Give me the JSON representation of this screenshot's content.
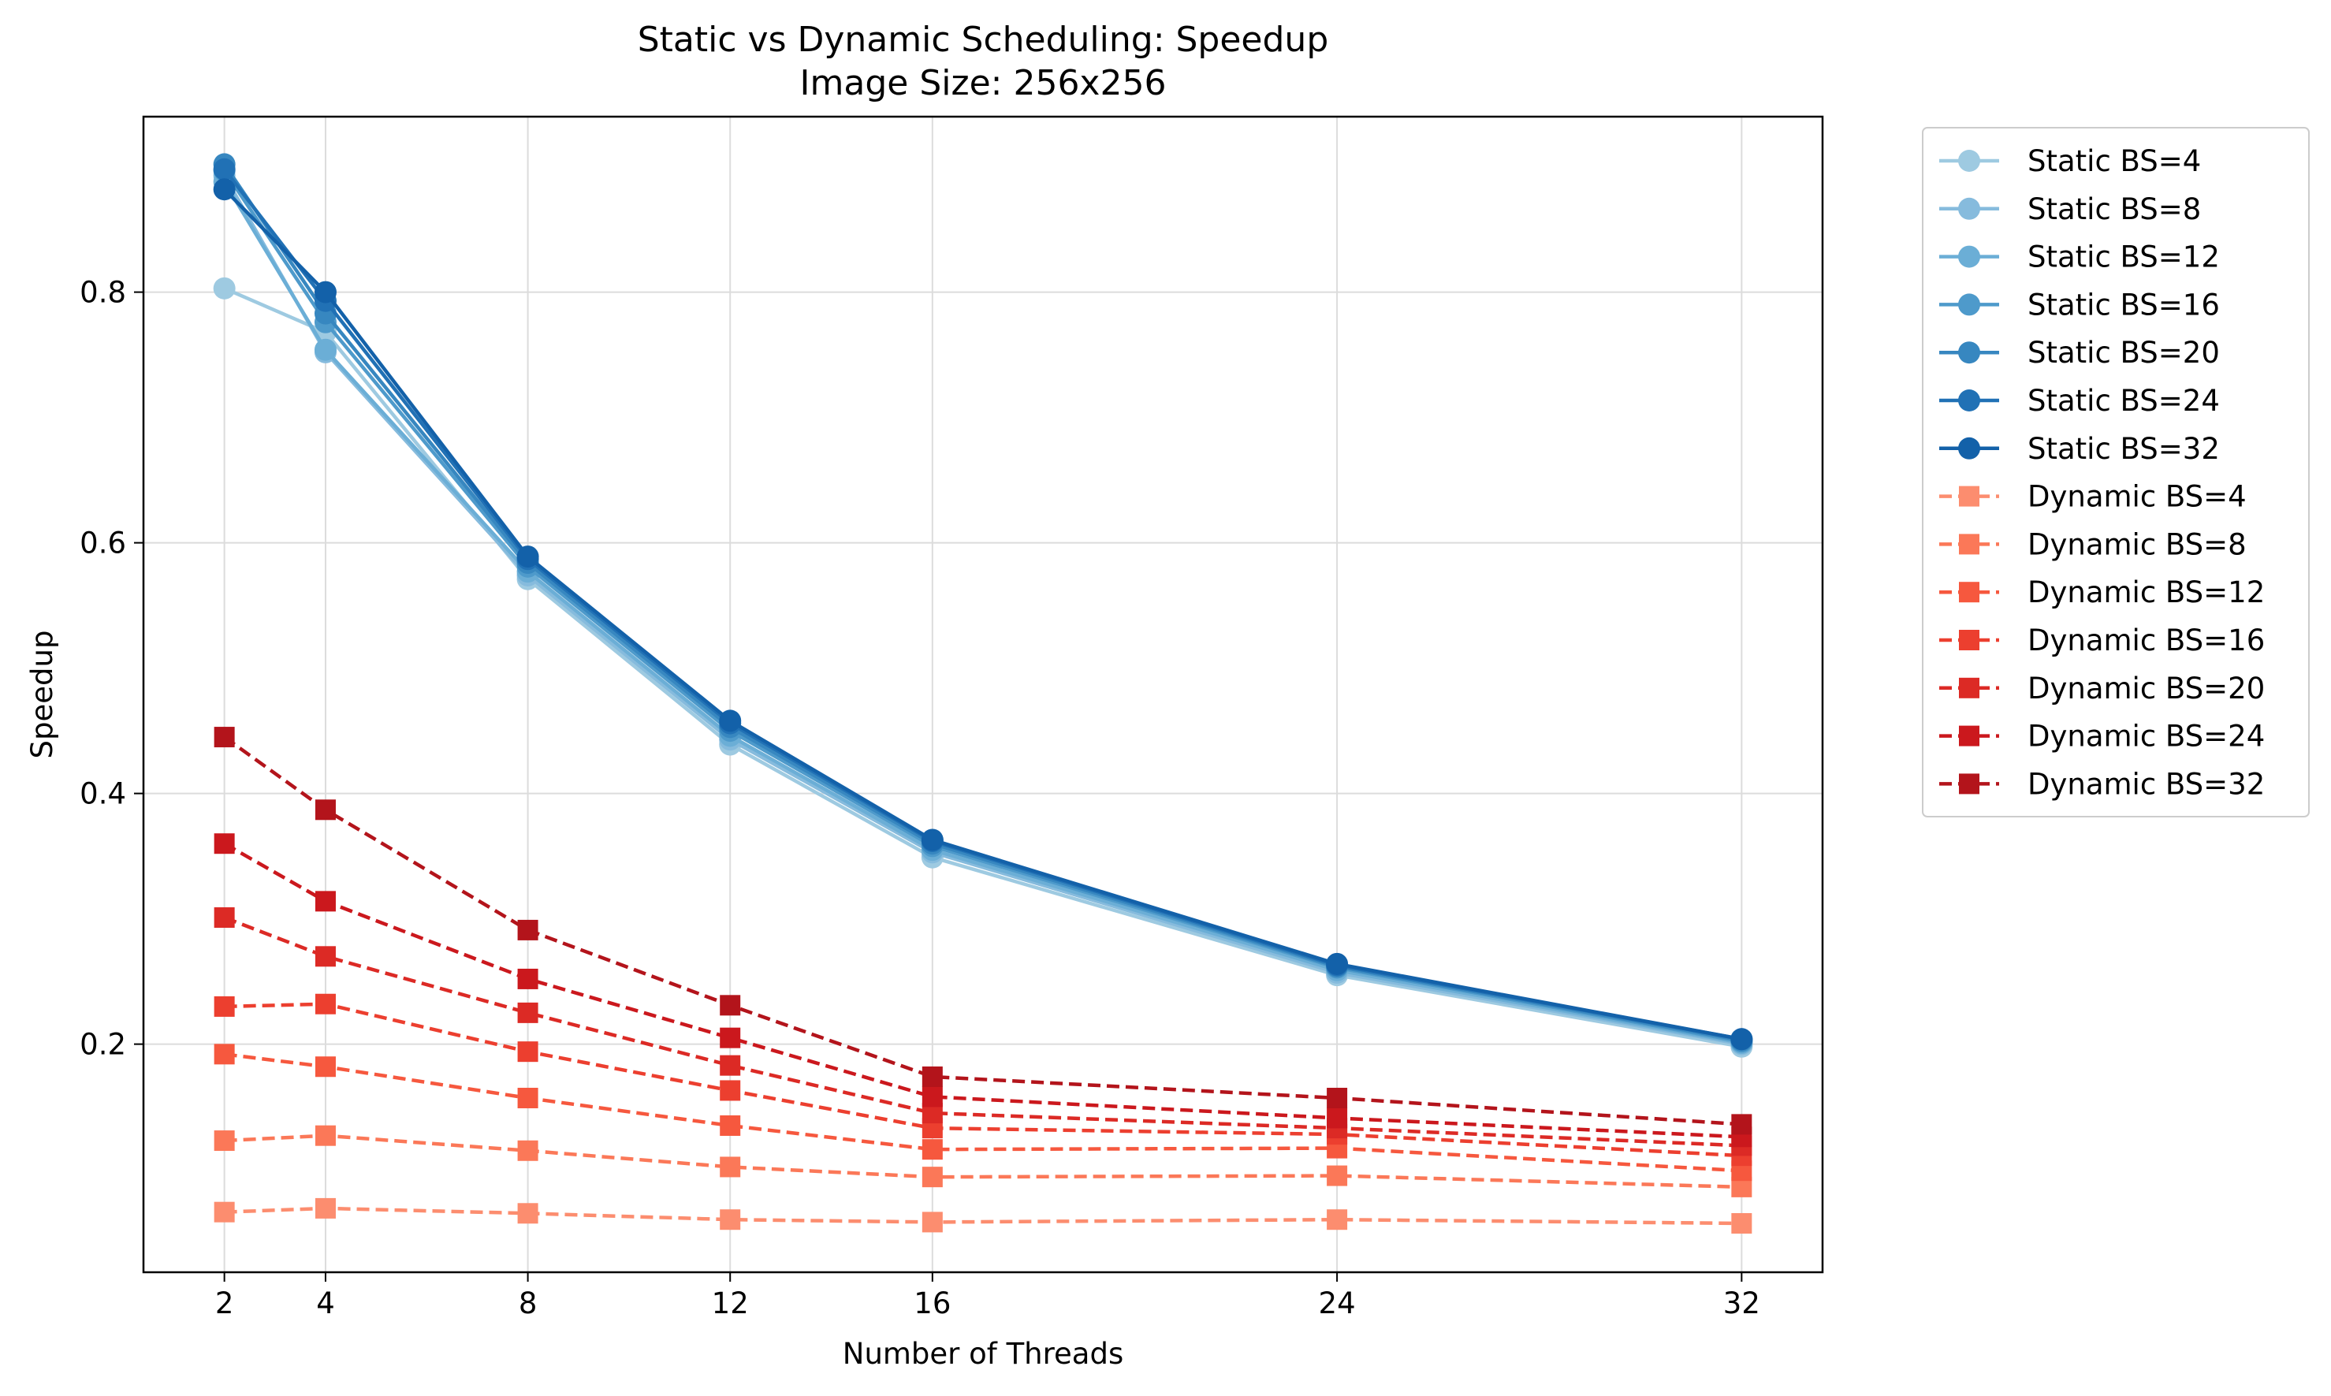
{
  "chart_data": {
    "type": "line",
    "title": "Static vs Dynamic Scheduling: Speedup",
    "subtitle": "Image Size: 256x256",
    "xlabel": "Number of Threads",
    "ylabel": "Speedup",
    "x": [
      2,
      4,
      8,
      12,
      16,
      24,
      32
    ],
    "xlim": [
      0.4,
      33.6
    ],
    "ylim": [
      0.018,
      0.94
    ],
    "xticks": [
      "2",
      "4",
      "8",
      "12",
      "16",
      "24",
      "32"
    ],
    "yticks": [
      {
        "value": 0.2,
        "label": "0.2"
      },
      {
        "value": 0.4,
        "label": "0.4"
      },
      {
        "value": 0.6,
        "label": "0.6"
      },
      {
        "value": 0.8,
        "label": "0.8"
      }
    ],
    "grid": true,
    "legend_position": "outside-right",
    "series": [
      {
        "name": "Static BS=4",
        "group": "static",
        "color": "#9ecae1",
        "values": [
          0.803,
          0.768,
          0.571,
          0.439,
          0.349,
          0.255,
          0.198
        ]
      },
      {
        "name": "Static BS=8",
        "group": "static",
        "color": "#86bbdd",
        "values": [
          0.893,
          0.752,
          0.574,
          0.443,
          0.353,
          0.257,
          0.2
        ]
      },
      {
        "name": "Static BS=12",
        "group": "static",
        "color": "#6baed6",
        "values": [
          0.888,
          0.754,
          0.577,
          0.446,
          0.355,
          0.259,
          0.201
        ]
      },
      {
        "name": "Static BS=16",
        "group": "static",
        "color": "#4e9acb",
        "values": [
          0.897,
          0.776,
          0.581,
          0.45,
          0.358,
          0.261,
          0.202
        ]
      },
      {
        "name": "Static BS=20",
        "group": "static",
        "color": "#3787c0",
        "values": [
          0.902,
          0.783,
          0.584,
          0.453,
          0.36,
          0.262,
          0.203
        ]
      },
      {
        "name": "Static BS=24",
        "group": "static",
        "color": "#2171b5",
        "values": [
          0.898,
          0.793,
          0.587,
          0.456,
          0.362,
          0.263,
          0.204
        ]
      },
      {
        "name": "Static BS=32",
        "group": "static",
        "color": "#1361a9",
        "values": [
          0.882,
          0.8,
          0.589,
          0.458,
          0.363,
          0.264,
          0.204
        ]
      },
      {
        "name": "Dynamic BS=4",
        "group": "dynamic",
        "color": "#fc8d6f",
        "values": [
          0.066,
          0.069,
          0.065,
          0.06,
          0.058,
          0.06,
          0.057
        ]
      },
      {
        "name": "Dynamic BS=8",
        "group": "dynamic",
        "color": "#fb7858",
        "values": [
          0.123,
          0.127,
          0.115,
          0.102,
          0.094,
          0.095,
          0.086
        ]
      },
      {
        "name": "Dynamic BS=12",
        "group": "dynamic",
        "color": "#f6583e",
        "values": [
          0.192,
          0.182,
          0.157,
          0.135,
          0.116,
          0.117,
          0.099
        ]
      },
      {
        "name": "Dynamic BS=16",
        "group": "dynamic",
        "color": "#ec3f2f",
        "values": [
          0.23,
          0.232,
          0.194,
          0.163,
          0.133,
          0.128,
          0.111
        ]
      },
      {
        "name": "Dynamic BS=20",
        "group": "dynamic",
        "color": "#dc2a25",
        "values": [
          0.301,
          0.27,
          0.225,
          0.183,
          0.145,
          0.133,
          0.119
        ]
      },
      {
        "name": "Dynamic BS=24",
        "group": "dynamic",
        "color": "#cb181d",
        "values": [
          0.36,
          0.314,
          0.252,
          0.205,
          0.158,
          0.141,
          0.126
        ]
      },
      {
        "name": "Dynamic BS=32",
        "group": "dynamic",
        "color": "#b3141b",
        "values": [
          0.445,
          0.387,
          0.291,
          0.231,
          0.174,
          0.157,
          0.136
        ]
      }
    ]
  }
}
